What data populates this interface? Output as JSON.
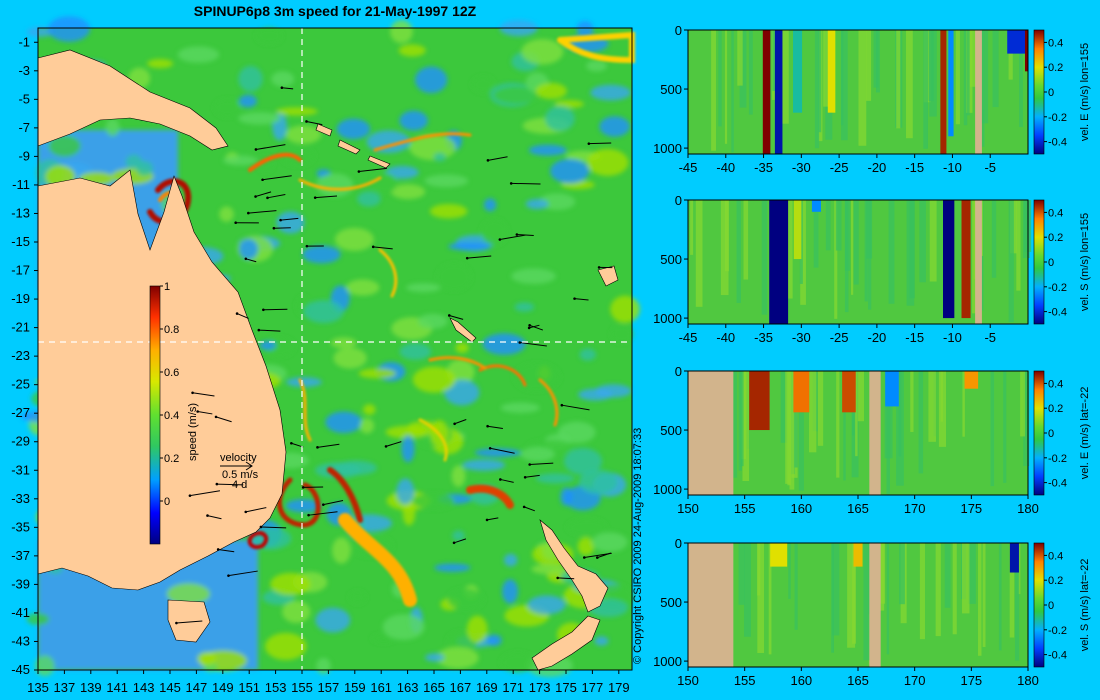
{
  "title": "SPINUP6p8 3m speed for 21-May-1997 12Z",
  "copyright": "© Copyright CSIRO 2009   24-Aug-2009 18:07:33",
  "colors": {
    "background": "#00ccff",
    "land": "#ffcc99",
    "section_land": "#d2b48c",
    "ocean_base": "#3cc83c",
    "guide": "#ffffff"
  },
  "chart_data": [
    {
      "type": "heatmap",
      "name": "map",
      "x_ticks": [
        "135",
        "137",
        "139",
        "141",
        "143",
        "145",
        "147",
        "149",
        "151",
        "153",
        "155",
        "157",
        "159",
        "161",
        "163",
        "165",
        "167",
        "169",
        "171",
        "173",
        "175",
        "177",
        "179"
      ],
      "y_ticks": [
        "-1",
        "-3",
        "-5",
        "-7",
        "-9",
        "-11",
        "-13",
        "-15",
        "-17",
        "-19",
        "-21",
        "-23",
        "-25",
        "-27",
        "-29",
        "-31",
        "-33",
        "-35",
        "-37",
        "-39",
        "-41",
        "-43",
        "-45"
      ],
      "xlim": [
        135,
        180
      ],
      "ylim": [
        -45,
        0
      ],
      "colorbar": {
        "label": "speed (m/s)",
        "ticks": [
          "1",
          "0.8",
          "0.6",
          "0.4",
          "0.2",
          "0"
        ],
        "range": [
          -0.2,
          1
        ]
      },
      "legend": {
        "title": "velocity",
        "speed": "0.5 m/s",
        "time": "4 d"
      },
      "guides": {
        "lon": 155,
        "lat": -22
      }
    },
    {
      "type": "heatmap",
      "name": "section-1",
      "label": "vel. E (m/s) lon=155",
      "x_ticks": [
        "-45",
        "-40",
        "-35",
        "-30",
        "-25",
        "-20",
        "-15",
        "-10",
        "-5"
      ],
      "y_ticks": [
        "0",
        "500",
        "1000"
      ],
      "xlim": [
        -45,
        0
      ],
      "ylim": [
        1050,
        0
      ],
      "colorbar_ticks": [
        "0.4",
        "0.2",
        "0",
        "-0.2",
        "-0.4"
      ],
      "land_spans": [
        [
          -7.0,
          -6.1
        ]
      ],
      "features": [
        {
          "x": -34.6,
          "w": 1.0,
          "v": 0.5,
          "depth": 1050
        },
        {
          "x": -33.0,
          "w": 1.0,
          "v": -0.4,
          "depth": 1050
        },
        {
          "x": -30.5,
          "w": 1.2,
          "v": -0.1,
          "depth": 700
        },
        {
          "x": -26.0,
          "w": 1.0,
          "v": 0.2,
          "depth": 700
        },
        {
          "x": -11.2,
          "w": 0.8,
          "v": 0.45,
          "depth": 1050
        },
        {
          "x": -10.2,
          "w": 0.7,
          "v": -0.2,
          "depth": 900
        },
        {
          "x": -1.5,
          "w": 2.5,
          "v": -0.35,
          "depth": 200
        },
        {
          "x": -0.2,
          "w": 0.4,
          "v": 0.5,
          "depth": 350
        }
      ]
    },
    {
      "type": "heatmap",
      "name": "section-2",
      "label": "vel. S (m/s) lon=155",
      "x_ticks": [
        "-45",
        "-40",
        "-35",
        "-30",
        "-25",
        "-20",
        "-15",
        "-10",
        "-5"
      ],
      "y_ticks": [
        "0",
        "500",
        "1000"
      ],
      "xlim": [
        -45,
        0
      ],
      "ylim": [
        1050,
        0
      ],
      "colorbar_ticks": [
        "0.4",
        "0.2",
        "0",
        "-0.2",
        "-0.4"
      ],
      "land_spans": [
        [
          -7.0,
          -6.1
        ]
      ],
      "features": [
        {
          "x": -33.0,
          "w": 2.5,
          "v": -0.45,
          "depth": 1050
        },
        {
          "x": -30.5,
          "w": 1.0,
          "v": 0.15,
          "depth": 500
        },
        {
          "x": -28.0,
          "w": 1.2,
          "v": -0.2,
          "depth": 100
        },
        {
          "x": -10.5,
          "w": 1.5,
          "v": -0.45,
          "depth": 1000
        },
        {
          "x": -8.2,
          "w": 1.2,
          "v": 0.45,
          "depth": 1000
        }
      ]
    },
    {
      "type": "heatmap",
      "name": "section-3",
      "label": "vel. E (m/s) lat=-22",
      "x_ticks": [
        "150",
        "155",
        "160",
        "165",
        "170",
        "175",
        "180"
      ],
      "y_ticks": [
        "0",
        "500",
        "1000"
      ],
      "xlim": [
        150,
        180
      ],
      "ylim": [
        1050,
        0
      ],
      "colorbar_ticks": [
        "0.4",
        "0.2",
        "0",
        "-0.2",
        "-0.4"
      ],
      "land_spans": [
        [
          150,
          154.0
        ],
        [
          166.0,
          167.0
        ]
      ],
      "features": [
        {
          "x": 156.3,
          "w": 1.8,
          "v": 0.45,
          "depth": 500
        },
        {
          "x": 160.0,
          "w": 1.4,
          "v": 0.35,
          "depth": 350
        },
        {
          "x": 164.2,
          "w": 1.2,
          "v": 0.4,
          "depth": 350
        },
        {
          "x": 168.0,
          "w": 1.2,
          "v": -0.2,
          "depth": 300
        },
        {
          "x": 175.0,
          "w": 1.2,
          "v": 0.3,
          "depth": 150
        }
      ]
    },
    {
      "type": "heatmap",
      "name": "section-4",
      "label": "vel. S (m/s) lat=-22",
      "x_ticks": [
        "150",
        "155",
        "160",
        "165",
        "170",
        "175",
        "180"
      ],
      "y_ticks": [
        "0",
        "500",
        "1000"
      ],
      "xlim": [
        150,
        180
      ],
      "ylim": [
        1050,
        0
      ],
      "colorbar_ticks": [
        "0.4",
        "0.2",
        "0",
        "-0.2",
        "-0.4"
      ],
      "land_spans": [
        [
          150,
          154.0
        ],
        [
          166.0,
          167.0
        ]
      ],
      "features": [
        {
          "x": 158.0,
          "w": 1.5,
          "v": 0.2,
          "depth": 200
        },
        {
          "x": 165.0,
          "w": 0.8,
          "v": 0.25,
          "depth": 200
        },
        {
          "x": 178.8,
          "w": 0.8,
          "v": -0.4,
          "depth": 250
        }
      ]
    }
  ]
}
